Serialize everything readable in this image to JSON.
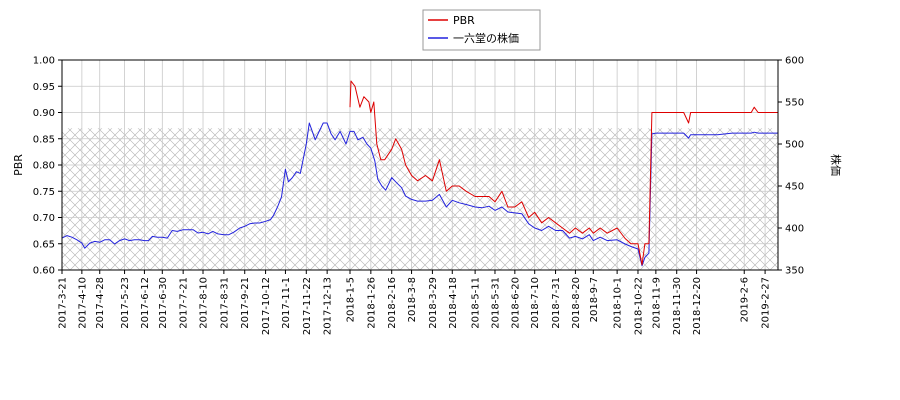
{
  "chart_data": {
    "type": "line",
    "legend": {
      "position": "top-center",
      "entries": [
        {
          "label": "PBR",
          "color": "#dd0000"
        },
        {
          "label": "一六堂の株価",
          "color": "#2222dd"
        }
      ]
    },
    "y_left": {
      "label": "PBR",
      "lim": [
        0.6,
        1.0
      ],
      "ticks": [
        "0.60",
        "0.65",
        "0.70",
        "0.75",
        "0.80",
        "0.85",
        "0.90",
        "0.95",
        "1.00"
      ]
    },
    "y_right": {
      "label": "株価",
      "lim": [
        350,
        600
      ],
      "ticks": [
        "350",
        "400",
        "450",
        "500",
        "550",
        "600"
      ]
    },
    "hatched_band": {
      "axis": "left",
      "from": 0.6,
      "to": 0.87
    },
    "x_ticks": [
      "2017-3-21",
      "2017-4-10",
      "2017-4-28",
      "2017-5-23",
      "2017-6-12",
      "2017-6-30",
      "2017-7-21",
      "2017-8-10",
      "2017-8-31",
      "2017-9-21",
      "2017-10-12",
      "2017-11-1",
      "2017-11-22",
      "2017-12-13",
      "2018-1-5",
      "2018-1-26",
      "2018-2-16",
      "2018-3-8",
      "2018-3-29",
      "2018-4-18",
      "2018-5-11",
      "2018-5-31",
      "2018-6-20",
      "2018-7-10",
      "2018-7-31",
      "2018-8-20",
      "2018-9-7",
      "2018-10-1",
      "2018-10-22",
      "2018-11-9",
      "2018-11-30",
      "2018-12-20",
      "2019-2-6",
      "2019-2-27"
    ],
    "series": [
      {
        "name": "PBR",
        "axis": "left",
        "color": "#dd0000",
        "points": [
          [
            "2018-1-5",
            0.91
          ],
          [
            "2018-1-6",
            0.96
          ],
          [
            "2018-1-10",
            0.95
          ],
          [
            "2018-1-15",
            0.91
          ],
          [
            "2018-1-19",
            0.93
          ],
          [
            "2018-1-24",
            0.92
          ],
          [
            "2018-1-26",
            0.9
          ],
          [
            "2018-1-29",
            0.92
          ],
          [
            "2018-2-1",
            0.84
          ],
          [
            "2018-2-5",
            0.81
          ],
          [
            "2018-2-9",
            0.81
          ],
          [
            "2018-2-16",
            0.83
          ],
          [
            "2018-2-20",
            0.85
          ],
          [
            "2018-2-26",
            0.83
          ],
          [
            "2018-3-2",
            0.8
          ],
          [
            "2018-3-8",
            0.78
          ],
          [
            "2018-3-14",
            0.77
          ],
          [
            "2018-3-22",
            0.78
          ],
          [
            "2018-3-29",
            0.77
          ],
          [
            "2018-4-5",
            0.81
          ],
          [
            "2018-4-12",
            0.75
          ],
          [
            "2018-4-18",
            0.76
          ],
          [
            "2018-4-25",
            0.76
          ],
          [
            "2018-5-2",
            0.75
          ],
          [
            "2018-5-11",
            0.74
          ],
          [
            "2018-5-18",
            0.74
          ],
          [
            "2018-5-25",
            0.74
          ],
          [
            "2018-5-31",
            0.73
          ],
          [
            "2018-6-7",
            0.75
          ],
          [
            "2018-6-13",
            0.72
          ],
          [
            "2018-6-20",
            0.72
          ],
          [
            "2018-6-27",
            0.73
          ],
          [
            "2018-7-4",
            0.7
          ],
          [
            "2018-7-10",
            0.71
          ],
          [
            "2018-7-17",
            0.69
          ],
          [
            "2018-7-24",
            0.7
          ],
          [
            "2018-7-31",
            0.69
          ],
          [
            "2018-8-7",
            0.68
          ],
          [
            "2018-8-14",
            0.67
          ],
          [
            "2018-8-20",
            0.68
          ],
          [
            "2018-8-27",
            0.67
          ],
          [
            "2018-9-3",
            0.68
          ],
          [
            "2018-9-7",
            0.67
          ],
          [
            "2018-9-14",
            0.68
          ],
          [
            "2018-9-21",
            0.67
          ],
          [
            "2018-10-1",
            0.68
          ],
          [
            "2018-10-9",
            0.66
          ],
          [
            "2018-10-15",
            0.65
          ],
          [
            "2018-10-22",
            0.65
          ],
          [
            "2018-10-26",
            0.61
          ],
          [
            "2018-10-29",
            0.65
          ],
          [
            "2018-11-2",
            0.65
          ],
          [
            "2018-11-5",
            0.9
          ],
          [
            "2018-11-9",
            0.9
          ],
          [
            "2018-11-16",
            0.9
          ],
          [
            "2018-11-22",
            0.9
          ],
          [
            "2018-11-30",
            0.9
          ],
          [
            "2018-12-7",
            0.9
          ],
          [
            "2018-12-12",
            0.88
          ],
          [
            "2018-12-14",
            0.9
          ],
          [
            "2018-12-20",
            0.9
          ],
          [
            "2019-1-10",
            0.9
          ],
          [
            "2019-1-25",
            0.9
          ],
          [
            "2019-2-6",
            0.9
          ],
          [
            "2019-2-13",
            0.9
          ],
          [
            "2019-2-16",
            0.91
          ],
          [
            "2019-2-20",
            0.9
          ],
          [
            "2019-2-27",
            0.9
          ],
          [
            "2019-3-12",
            0.9
          ]
        ]
      },
      {
        "name": "一六堂の株価",
        "axis": "right",
        "color": "#2222dd",
        "points": [
          [
            "2017-3-21",
            388
          ],
          [
            "2017-3-26",
            391
          ],
          [
            "2017-3-31",
            389
          ],
          [
            "2017-4-5",
            386
          ],
          [
            "2017-4-10",
            382
          ],
          [
            "2017-4-13",
            376
          ],
          [
            "2017-4-18",
            382
          ],
          [
            "2017-4-23",
            384
          ],
          [
            "2017-4-28",
            383
          ],
          [
            "2017-5-3",
            386
          ],
          [
            "2017-5-8",
            386
          ],
          [
            "2017-5-13",
            381
          ],
          [
            "2017-5-18",
            385
          ],
          [
            "2017-5-23",
            387
          ],
          [
            "2017-5-28",
            385
          ],
          [
            "2017-6-2",
            386
          ],
          [
            "2017-6-7",
            386
          ],
          [
            "2017-6-12",
            385
          ],
          [
            "2017-6-16",
            385
          ],
          [
            "2017-6-20",
            390
          ],
          [
            "2017-6-25",
            389
          ],
          [
            "2017-6-30",
            389
          ],
          [
            "2017-7-5",
            388
          ],
          [
            "2017-7-10",
            397
          ],
          [
            "2017-7-15",
            396
          ],
          [
            "2017-7-21",
            398
          ],
          [
            "2017-7-26",
            398
          ],
          [
            "2017-7-31",
            398
          ],
          [
            "2017-8-5",
            394
          ],
          [
            "2017-8-10",
            395
          ],
          [
            "2017-8-15",
            393
          ],
          [
            "2017-8-20",
            396
          ],
          [
            "2017-8-25",
            393
          ],
          [
            "2017-8-31",
            392
          ],
          [
            "2017-9-5",
            392
          ],
          [
            "2017-9-10",
            395
          ],
          [
            "2017-9-16",
            400
          ],
          [
            "2017-9-21",
            402
          ],
          [
            "2017-9-26",
            405
          ],
          [
            "2017-10-1",
            406
          ],
          [
            "2017-10-6",
            406
          ],
          [
            "2017-10-12",
            408
          ],
          [
            "2017-10-17",
            410
          ],
          [
            "2017-10-20",
            415
          ],
          [
            "2017-10-24",
            425
          ],
          [
            "2017-10-28",
            437
          ],
          [
            "2017-11-1",
            470
          ],
          [
            "2017-11-4",
            455
          ],
          [
            "2017-11-8",
            460
          ],
          [
            "2017-11-12",
            467
          ],
          [
            "2017-11-16",
            465
          ],
          [
            "2017-11-22",
            500
          ],
          [
            "2017-11-25",
            525
          ],
          [
            "2017-11-28",
            515
          ],
          [
            "2017-12-1",
            505
          ],
          [
            "2017-12-5",
            515
          ],
          [
            "2017-12-9",
            525
          ],
          [
            "2017-12-13",
            525
          ],
          [
            "2017-12-17",
            512
          ],
          [
            "2017-12-21",
            505
          ],
          [
            "2017-12-26",
            515
          ],
          [
            "2018-1-1",
            500
          ],
          [
            "2018-1-5",
            515
          ],
          [
            "2018-1-9",
            515
          ],
          [
            "2018-1-13",
            505
          ],
          [
            "2018-1-18",
            508
          ],
          [
            "2018-1-22",
            500
          ],
          [
            "2018-1-26",
            495
          ],
          [
            "2018-1-30",
            480
          ],
          [
            "2018-2-2",
            458
          ],
          [
            "2018-2-6",
            450
          ],
          [
            "2018-2-10",
            445
          ],
          [
            "2018-2-16",
            460
          ],
          [
            "2018-2-20",
            455
          ],
          [
            "2018-2-26",
            448
          ],
          [
            "2018-3-2",
            438
          ],
          [
            "2018-3-8",
            434
          ],
          [
            "2018-3-14",
            432
          ],
          [
            "2018-3-22",
            432
          ],
          [
            "2018-3-29",
            433
          ],
          [
            "2018-4-5",
            440
          ],
          [
            "2018-4-12",
            425
          ],
          [
            "2018-4-18",
            433
          ],
          [
            "2018-4-25",
            430
          ],
          [
            "2018-5-2",
            428
          ],
          [
            "2018-5-11",
            425
          ],
          [
            "2018-5-18",
            424
          ],
          [
            "2018-5-25",
            426
          ],
          [
            "2018-5-31",
            421
          ],
          [
            "2018-6-7",
            425
          ],
          [
            "2018-6-13",
            419
          ],
          [
            "2018-6-20",
            418
          ],
          [
            "2018-6-27",
            417
          ],
          [
            "2018-7-4",
            405
          ],
          [
            "2018-7-10",
            400
          ],
          [
            "2018-7-17",
            397
          ],
          [
            "2018-7-24",
            402
          ],
          [
            "2018-7-31",
            397
          ],
          [
            "2018-8-7",
            397
          ],
          [
            "2018-8-14",
            388
          ],
          [
            "2018-8-20",
            390
          ],
          [
            "2018-8-27",
            387
          ],
          [
            "2018-9-3",
            392
          ],
          [
            "2018-9-7",
            385
          ],
          [
            "2018-9-14",
            389
          ],
          [
            "2018-9-21",
            385
          ],
          [
            "2018-10-1",
            386
          ],
          [
            "2018-10-9",
            381
          ],
          [
            "2018-10-15",
            378
          ],
          [
            "2018-10-22",
            375
          ],
          [
            "2018-10-26",
            355
          ],
          [
            "2018-10-29",
            365
          ],
          [
            "2018-11-2",
            370
          ],
          [
            "2018-11-5",
            512
          ],
          [
            "2018-11-9",
            513
          ],
          [
            "2018-11-16",
            513
          ],
          [
            "2018-11-22",
            513
          ],
          [
            "2018-11-30",
            513
          ],
          [
            "2018-12-7",
            513
          ],
          [
            "2018-12-12",
            507
          ],
          [
            "2018-12-14",
            511
          ],
          [
            "2018-12-20",
            511
          ],
          [
            "2019-1-10",
            511
          ],
          [
            "2019-1-25",
            513
          ],
          [
            "2019-2-6",
            513
          ],
          [
            "2019-2-13",
            513
          ],
          [
            "2019-2-16",
            514
          ],
          [
            "2019-2-20",
            513
          ],
          [
            "2019-2-27",
            513
          ],
          [
            "2019-3-12",
            513
          ]
        ]
      }
    ]
  }
}
